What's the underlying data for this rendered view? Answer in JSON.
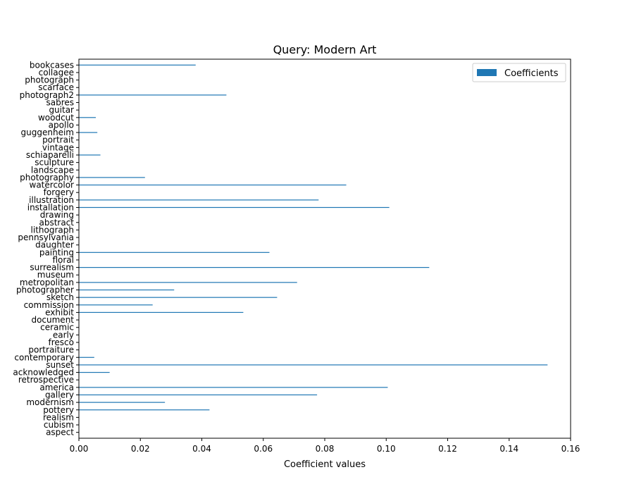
{
  "chart_data": {
    "type": "bar",
    "orientation": "horizontal",
    "title": "Query: Modern Art",
    "xlabel": "Coefficient values",
    "ylabel": "",
    "xlim": [
      0.0,
      0.16
    ],
    "xticks": [
      "0.00",
      "0.02",
      "0.04",
      "0.06",
      "0.08",
      "0.10",
      "0.12",
      "0.14",
      "0.16"
    ],
    "grid": false,
    "legend": {
      "position": "top-right",
      "entries": [
        "Coefficients"
      ]
    },
    "colors": {
      "bar": "#1f77b4",
      "axis": "#000000"
    },
    "categories": [
      "bookcases",
      "collagee",
      "photograph",
      "scarface",
      "photograph2",
      "sabres",
      "guitar",
      "woodcut",
      "apollo",
      "guggenheim",
      "portrait",
      "vintage",
      "schiaparelli",
      "sculpture",
      "landscape",
      "photography",
      "watercolor",
      "forgery",
      "illustration",
      "installation",
      "drawing",
      "abstract",
      "lithograph",
      "pennsylvania",
      "daughter",
      "painting",
      "floral",
      "surrealism",
      "museum",
      "metropolitan",
      "photographer",
      "sketch",
      "commission",
      "exhibit",
      "document",
      "ceramic",
      "early",
      "fresco",
      "portraiture",
      "contemporary",
      "sunset",
      "acknowledged",
      "retrospective",
      "america",
      "gallery",
      "modernism",
      "pottery",
      "realism",
      "cubism",
      "aspect"
    ],
    "values": [
      0.038,
      0.0,
      0.0,
      0.0,
      0.048,
      0.0,
      0.0,
      0.0055,
      0.0,
      0.006,
      0.0,
      0.0,
      0.007,
      0.0,
      0.0,
      0.0215,
      0.087,
      0.0,
      0.078,
      0.101,
      0.0,
      0.0,
      0.0,
      0.0,
      0.0,
      0.062,
      0.0,
      0.114,
      0.0,
      0.071,
      0.031,
      0.0645,
      0.024,
      0.0535,
      0.0,
      0.0,
      0.0,
      0.0,
      0.0,
      0.005,
      0.1525,
      0.01,
      0.0,
      0.1005,
      0.0775,
      0.028,
      0.0425,
      0.0,
      0.0,
      0.0
    ]
  }
}
